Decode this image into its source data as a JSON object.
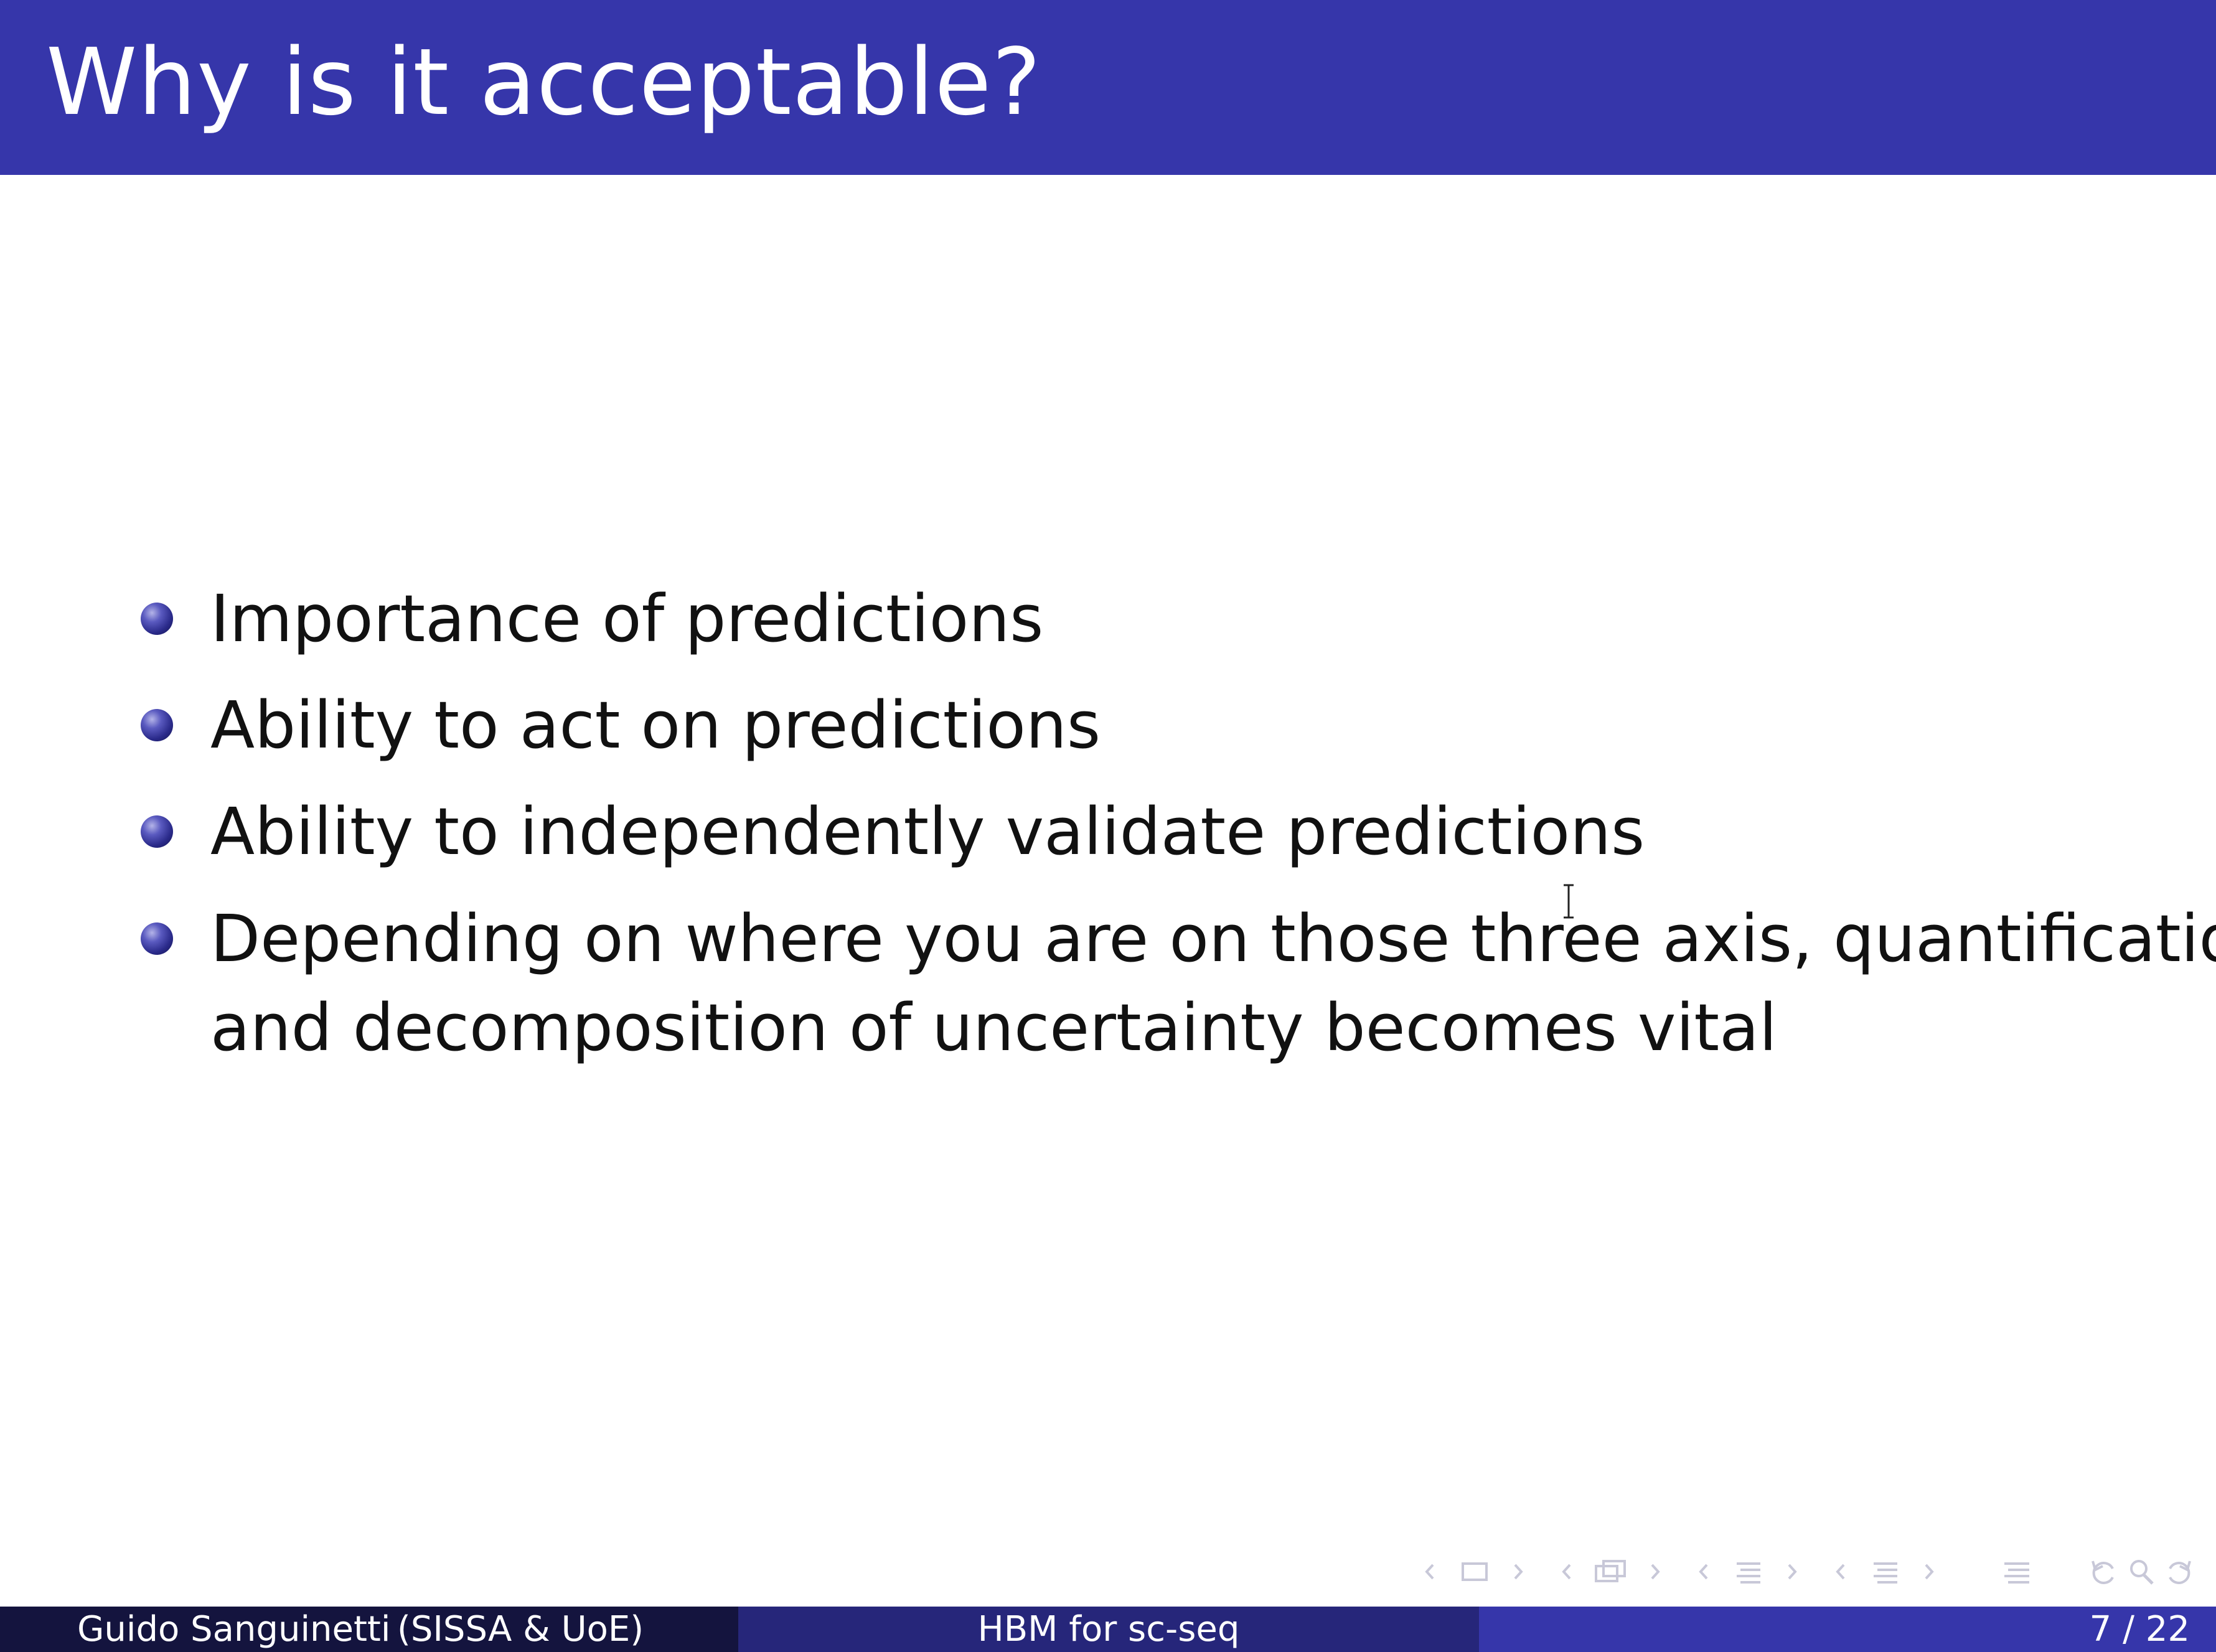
{
  "title": "Why is it acceptable?",
  "bullets": [
    {
      "text": "Importance of predictions"
    },
    {
      "text": "Ability to act on predictions"
    },
    {
      "text": "Ability to independently validate predictions"
    },
    {
      "lines": [
        "Depending on where you are on those three axis, quantification",
        "and decomposition of uncertainty becomes vital"
      ]
    }
  ],
  "footer": {
    "author": "Guido Sanguinetti",
    "institution": "(SISSA & UoE)",
    "short_title": "HBM for sc-seq",
    "page": "7 / 22"
  },
  "colors": {
    "title_bar": "#3636aa",
    "footer_dark": "#14143e",
    "footer_mid": "#26267a",
    "footer_light": "#3636aa"
  },
  "icons": [
    "nav-prev-arrow",
    "frame-icon",
    "subsection-icon",
    "section-icon",
    "toc-icon",
    "undo-icon",
    "search-icon",
    "redo-icon",
    "text-cursor-icon"
  ]
}
